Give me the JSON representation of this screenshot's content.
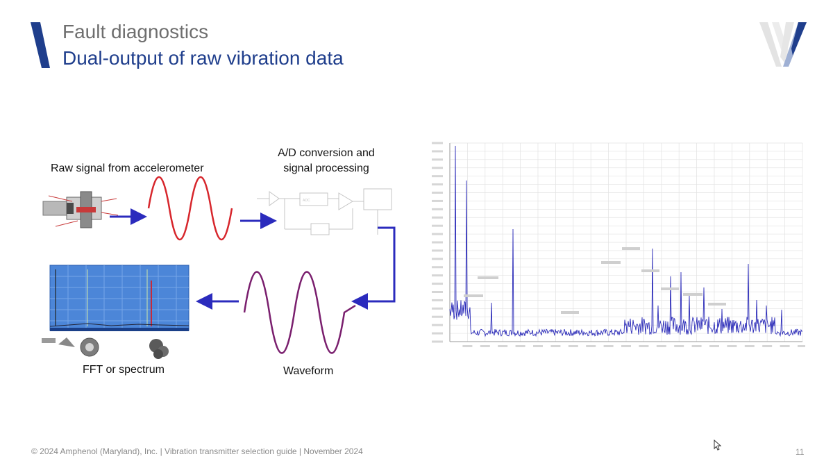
{
  "slide": {
    "title_line1": "Fault diagnostics",
    "title_line2": "Dual-output of raw vibration data",
    "accent_color": "#1f3e8c",
    "title_gray": "#6e6e6e"
  },
  "diagram": {
    "raw_signal_label": "Raw signal from accelerometer",
    "ad_label_line1": "A/D conversion and",
    "ad_label_line2": "signal processing",
    "fft_label": "FFT or spectrum",
    "waveform_label": "Waveform",
    "signal_color_red": "#d7262c",
    "signal_color_purple": "#7a1f6e",
    "arrow_color": "#2b2bbd"
  },
  "spectrum": {
    "line_color": "#2a2ab8",
    "grid_color": "#dddddd"
  },
  "footer": {
    "text": "© 2024 Amphenol (Maryland), Inc. |  Vibration transmitter selection guide  |  November 2024",
    "page_number": "11"
  },
  "icons": [
    "logo-w-icon",
    "accelerometer-icon",
    "circuit-block-icon",
    "bearing-icon",
    "cursor-icon"
  ]
}
